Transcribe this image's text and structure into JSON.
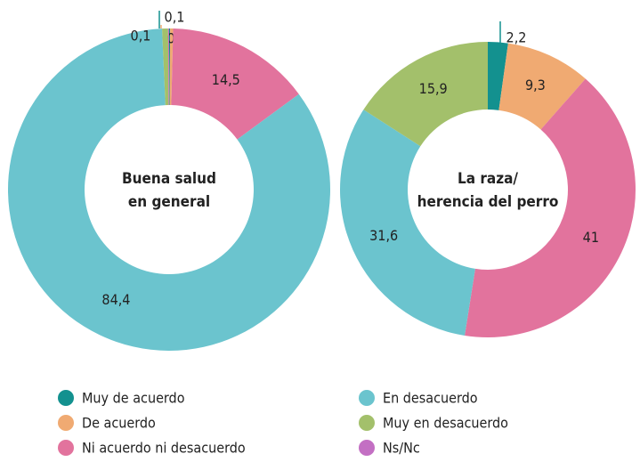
{
  "chart_data": [
    {
      "type": "pie",
      "title": [
        "Buena salud",
        "en general"
      ],
      "categories": [
        "Muy de acuerdo",
        "De acuerdo",
        "Ni acuerdo ni desacuerdo",
        "En desacuerdo",
        "Muy en desacuerdo",
        "Ns/Nc"
      ],
      "colors": [
        "#13918f",
        "#f0aa72",
        "#e2739d",
        "#6bc4ce",
        "#a3c06b",
        "#c36fc3"
      ],
      "values": [
        0.1,
        0.3,
        14.5,
        84.4,
        0.6,
        0.1
      ],
      "value_labels": [
        "0,1",
        "0,3",
        "14,5",
        "84,4",
        null,
        "0,1"
      ]
    },
    {
      "type": "pie",
      "title": [
        "La raza/",
        "herencia del perro"
      ],
      "categories": [
        "Muy de acuerdo",
        "De acuerdo",
        "Ni acuerdo ni desacuerdo",
        "En desacuerdo",
        "Muy en desacuerdo",
        "Ns/Nc"
      ],
      "colors": [
        "#13918f",
        "#f0aa72",
        "#e2739d",
        "#6bc4ce",
        "#a3c06b",
        "#c36fc3"
      ],
      "values": [
        2.2,
        9.3,
        41,
        31.6,
        15.9,
        0
      ],
      "value_labels": [
        "2,2",
        "9,3",
        "41",
        "31,6",
        "15,9",
        null
      ]
    }
  ]
}
